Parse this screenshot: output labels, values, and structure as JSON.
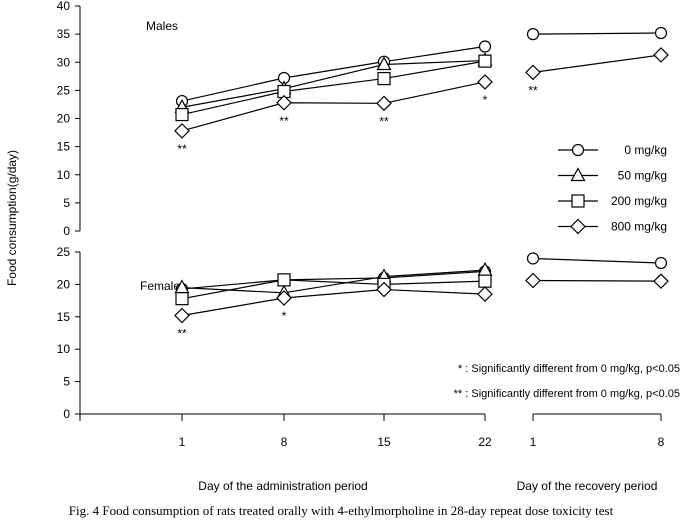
{
  "chart_data": {
    "type": "line",
    "caption": "Fig. 4  Food consumption of rats treated orally with 4-ethylmorpholine in 28-day repeat dose toxicity test",
    "ylabel": "Food consumption(g/day)",
    "xlabel_admin": "Day of the administration period",
    "xlabel_recovery": "Day of the recovery period",
    "x_admin": [
      1,
      8,
      15,
      22
    ],
    "x_recovery": [
      1,
      8
    ],
    "legend": [
      "0 mg/kg",
      "50 mg/kg",
      "200 mg/kg",
      "800 mg/kg"
    ],
    "legend_position": "right",
    "note1": "* : Significantly different from 0 mg/kg, p<0.05",
    "note2": "** : Significantly different from 0 mg/kg, p<0.05",
    "panels": [
      {
        "title": "Males",
        "ylim": [
          0,
          40
        ],
        "yticks": [
          0,
          5,
          10,
          15,
          20,
          25,
          30,
          35,
          40
        ],
        "series": [
          {
            "name": "0 mg/kg",
            "marker": "circle",
            "admin": [
              23.1,
              27.2,
              30.1,
              32.8
            ],
            "recovery": [
              35.0,
              35.2
            ]
          },
          {
            "name": "50 mg/kg",
            "marker": "triangle",
            "admin": [
              22.0,
              25.3,
              29.6,
              30.3
            ],
            "recovery": null
          },
          {
            "name": "200 mg/kg",
            "marker": "square",
            "admin": [
              20.7,
              24.8,
              27.1,
              30.2
            ],
            "recovery": null
          },
          {
            "name": "800 mg/kg",
            "marker": "diamond",
            "admin": [
              17.8,
              22.8,
              22.7,
              26.5
            ],
            "recovery": [
              28.2,
              31.3
            ]
          }
        ],
        "significance": [
          {
            "series": 3,
            "period": "admin",
            "index": 0,
            "mark": "**"
          },
          {
            "series": 3,
            "period": "admin",
            "index": 1,
            "mark": "**"
          },
          {
            "series": 3,
            "period": "admin",
            "index": 2,
            "mark": "**"
          },
          {
            "series": 3,
            "period": "admin",
            "index": 3,
            "mark": "*"
          },
          {
            "series": 3,
            "period": "recovery",
            "index": 0,
            "mark": "**"
          }
        ]
      },
      {
        "title": "Females",
        "ylim": [
          0,
          25
        ],
        "yticks": [
          0,
          5,
          10,
          15,
          20,
          25
        ],
        "series": [
          {
            "name": "0 mg/kg",
            "marker": "circle",
            "admin": [
              19.3,
              20.7,
              21.0,
              22.0
            ],
            "recovery": [
              24.0,
              23.3
            ]
          },
          {
            "name": "50 mg/kg",
            "marker": "triangle",
            "admin": [
              19.5,
              18.7,
              21.2,
              22.2
            ],
            "recovery": null
          },
          {
            "name": "200 mg/kg",
            "marker": "square",
            "admin": [
              17.8,
              20.7,
              20.0,
              20.5
            ],
            "recovery": null
          },
          {
            "name": "800 mg/kg",
            "marker": "diamond",
            "admin": [
              15.2,
              17.9,
              19.2,
              18.5
            ],
            "recovery": [
              20.6,
              20.5
            ]
          }
        ],
        "significance": [
          {
            "series": 3,
            "period": "admin",
            "index": 0,
            "mark": "**"
          },
          {
            "series": 3,
            "period": "admin",
            "index": 1,
            "mark": "*"
          }
        ]
      }
    ]
  }
}
